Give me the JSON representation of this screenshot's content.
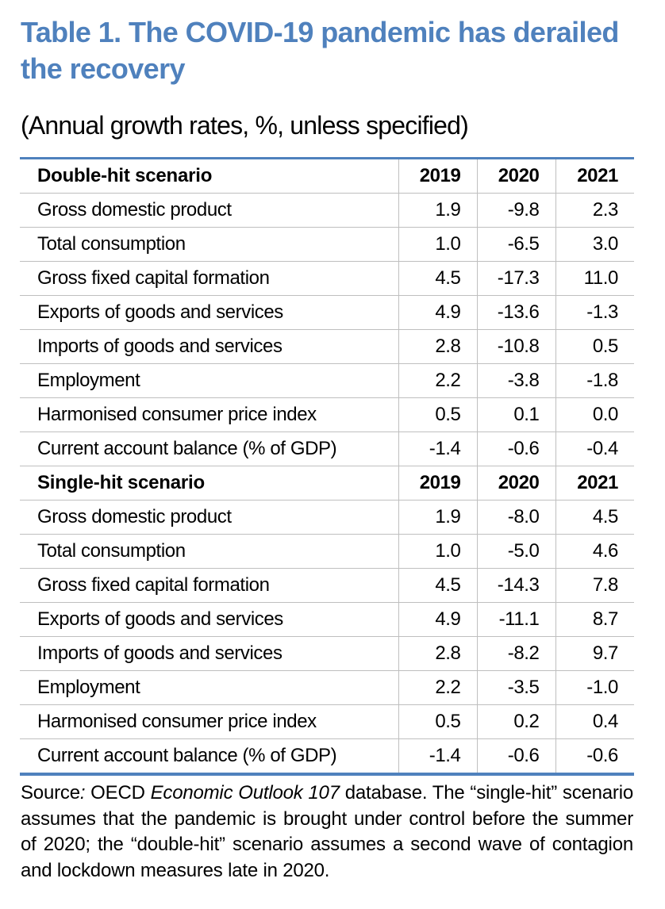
{
  "title": "Table 1. The COVID-19 pandemic has derailed the recovery",
  "subtitle": "(Annual growth rates, %, unless specified)",
  "sections": [
    {
      "heading": "Double-hit scenario",
      "years": [
        "2019",
        "2020",
        "2021"
      ],
      "rows": [
        {
          "label": "Gross domestic product",
          "values": [
            "1.9",
            "-9.8",
            "2.3"
          ]
        },
        {
          "label": "Total consumption",
          "values": [
            "1.0",
            "-6.5",
            "3.0"
          ]
        },
        {
          "label": "Gross fixed capital formation",
          "values": [
            "4.5",
            "-17.3",
            "11.0"
          ]
        },
        {
          "label": "Exports of goods and services",
          "values": [
            "4.9",
            "-13.6",
            "-1.3"
          ]
        },
        {
          "label": "Imports of goods and services",
          "values": [
            "2.8",
            "-10.8",
            "0.5"
          ]
        },
        {
          "label": "Employment",
          "values": [
            "2.2",
            "-3.8",
            "-1.8"
          ]
        },
        {
          "label": "Harmonised consumer price index",
          "values": [
            "0.5",
            "0.1",
            "0.0"
          ]
        },
        {
          "label": "Current account balance (% of GDP)",
          "values": [
            "-1.4",
            "-0.6",
            "-0.4"
          ]
        }
      ]
    },
    {
      "heading": "Single-hit scenario",
      "years": [
        "2019",
        "2020",
        "2021"
      ],
      "rows": [
        {
          "label": "Gross domestic product",
          "values": [
            "1.9",
            "-8.0",
            "4.5"
          ]
        },
        {
          "label": "Total consumption",
          "values": [
            "1.0",
            "-5.0",
            "4.6"
          ]
        },
        {
          "label": "Gross fixed capital formation",
          "values": [
            "4.5",
            "-14.3",
            "7.8"
          ]
        },
        {
          "label": "Exports of goods and services",
          "values": [
            "4.9",
            "-11.1",
            "8.7"
          ]
        },
        {
          "label": "Imports of goods and services",
          "values": [
            "2.8",
            "-8.2",
            "9.7"
          ]
        },
        {
          "label": "Employment",
          "values": [
            "2.2",
            "-3.5",
            "-1.0"
          ]
        },
        {
          "label": "Harmonised consumer price index",
          "values": [
            "0.5",
            "0.2",
            "0.4"
          ]
        },
        {
          "label": "Current account balance (% of GDP)",
          "values": [
            "-1.4",
            "-0.6",
            "-0.6"
          ]
        }
      ]
    }
  ],
  "source": {
    "prefix": "Source",
    "colon": ":",
    "pre_italic": " OECD ",
    "italic": "Economic Outlook 107",
    "rest": " database. The “single-hit” scenario assumes that the pandemic is brought under control before the summer of 2020; the “double-hit” scenario assumes a second wave of contagion and lockdown measures late in 2020."
  },
  "colors": {
    "accent": "#4f81bd",
    "grid": "#bfbfbf"
  }
}
